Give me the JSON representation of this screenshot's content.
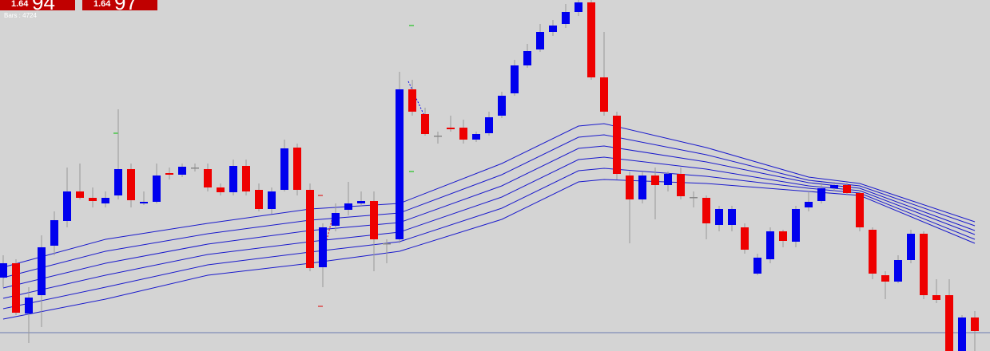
{
  "chart_data": {
    "type": "candlestick",
    "price_boxes": [
      {
        "prefix": "1.64",
        "digits": "94"
      },
      {
        "prefix": "1.64",
        "digits": "97"
      }
    ],
    "bars_label": "Bars : 4724",
    "up_color": "#0000ee",
    "down_color": "#ee0000",
    "doji_color": "#888888",
    "line_color": "#1a1acc",
    "hline_color": "#6a7ab0",
    "ylim": [
      0,
      440
    ],
    "hline": 23,
    "ohlc": [
      [
        92,
        120,
        80,
        110
      ],
      [
        110,
        115,
        45,
        48
      ],
      [
        47,
        80,
        10,
        67
      ],
      [
        70,
        145,
        30,
        130
      ],
      [
        132,
        175,
        120,
        164
      ],
      [
        163,
        230,
        155,
        200
      ],
      [
        200,
        235,
        190,
        192
      ],
      [
        192,
        205,
        180,
        188
      ],
      [
        185,
        200,
        180,
        192
      ],
      [
        195,
        303,
        190,
        228
      ],
      [
        228,
        235,
        180,
        189
      ],
      [
        185,
        200,
        183,
        187
      ],
      [
        187,
        235,
        185,
        220
      ],
      [
        223,
        230,
        215,
        221
      ],
      [
        221,
        235,
        218,
        231
      ],
      [
        230,
        235,
        225,
        230
      ],
      [
        228,
        235,
        200,
        205
      ],
      [
        205,
        210,
        195,
        199
      ],
      [
        199,
        240,
        195,
        232
      ],
      [
        232,
        240,
        195,
        200
      ],
      [
        202,
        210,
        175,
        178
      ],
      [
        178,
        205,
        172,
        200
      ],
      [
        202,
        265,
        200,
        254
      ],
      [
        255,
        260,
        195,
        202
      ],
      [
        202,
        210,
        100,
        104
      ],
      [
        105,
        160,
        80,
        155
      ],
      [
        157,
        185,
        150,
        173
      ],
      [
        177,
        212,
        170,
        185
      ],
      [
        185,
        200,
        182,
        188
      ],
      [
        188,
        200,
        100,
        140
      ],
      [
        135,
        140,
        110,
        135
      ],
      [
        140,
        350,
        135,
        328
      ],
      [
        328,
        340,
        295,
        300
      ],
      [
        297,
        305,
        270,
        272
      ],
      [
        270,
        275,
        260,
        270
      ],
      [
        280,
        295,
        275,
        278
      ],
      [
        280,
        290,
        260,
        265
      ],
      [
        265,
        275,
        262,
        272
      ],
      [
        273,
        300,
        270,
        293
      ],
      [
        295,
        325,
        292,
        320
      ],
      [
        323,
        365,
        320,
        358
      ],
      [
        358,
        385,
        355,
        376
      ],
      [
        378,
        410,
        375,
        400
      ],
      [
        400,
        415,
        395,
        408
      ],
      [
        410,
        435,
        405,
        425
      ],
      [
        425,
        440,
        420,
        437
      ],
      [
        437,
        440,
        340,
        343
      ],
      [
        343,
        400,
        295,
        300
      ],
      [
        295,
        300,
        215,
        222
      ],
      [
        220,
        225,
        135,
        190
      ],
      [
        190,
        225,
        185,
        220
      ],
      [
        220,
        230,
        165,
        208
      ],
      [
        208,
        225,
        200,
        222
      ],
      [
        222,
        230,
        190,
        194
      ],
      [
        193,
        200,
        180,
        193
      ],
      [
        192,
        195,
        140,
        160
      ],
      [
        158,
        182,
        150,
        178
      ],
      [
        158,
        182,
        150,
        178
      ],
      [
        155,
        160,
        122,
        127
      ],
      [
        97,
        122,
        95,
        117
      ],
      [
        115,
        155,
        110,
        150
      ],
      [
        150,
        152,
        130,
        138
      ],
      [
        137,
        182,
        130,
        178
      ],
      [
        180,
        200,
        175,
        187
      ],
      [
        188,
        212,
        185,
        204
      ],
      [
        204,
        212,
        200,
        208
      ],
      [
        208,
        212,
        195,
        198
      ],
      [
        198,
        202,
        150,
        155
      ],
      [
        152,
        155,
        90,
        97
      ],
      [
        95,
        100,
        65,
        87
      ],
      [
        87,
        120,
        85,
        114
      ],
      [
        114,
        152,
        110,
        147
      ],
      [
        147,
        150,
        65,
        70
      ],
      [
        70,
        90,
        60,
        64
      ],
      [
        70,
        90,
        0,
        0
      ],
      [
        0,
        45,
        0,
        42
      ],
      [
        42,
        50,
        0,
        25
      ]
    ],
    "x": [
      0,
      8,
      16,
      24,
      31,
      39,
      45,
      47,
      55,
      63,
      67,
      76
    ],
    "series": [
      {
        "values": [
          105,
          140,
          160,
          178,
          185,
          235,
          282,
          285,
          255,
          218,
          210,
          162
        ]
      },
      {
        "values": [
          92,
          125,
          147,
          164,
          173,
          221,
          268,
          271,
          246,
          214,
          207,
          157
        ]
      },
      {
        "values": [
          79,
          110,
          134,
          151,
          161,
          207,
          254,
          257,
          237,
          211,
          204,
          151
        ]
      },
      {
        "values": [
          66,
          95,
          121,
          137,
          149,
          193,
          240,
          243,
          228,
          207,
          201,
          146
        ]
      },
      {
        "values": [
          53,
          80,
          108,
          124,
          137,
          179,
          226,
          229,
          219,
          204,
          198,
          140
        ]
      },
      {
        "values": [
          40,
          65,
          95,
          110,
          125,
          165,
          212,
          215,
          210,
          200,
          195,
          135
        ]
      }
    ]
  }
}
